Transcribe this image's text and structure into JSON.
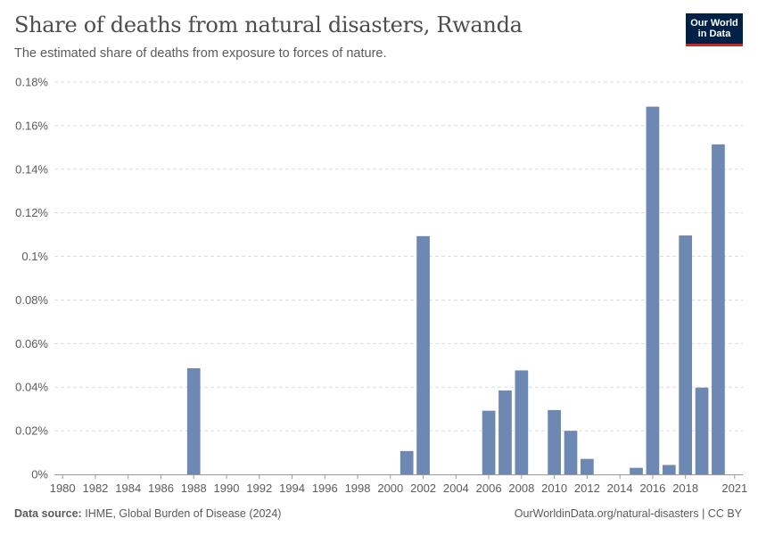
{
  "header": {
    "title": "Share of deaths from natural disasters, Rwanda",
    "subtitle": "The estimated share of deaths from exposure to forces of nature."
  },
  "logo": {
    "line1": "Our World",
    "line2": "in Data"
  },
  "footer": {
    "source_label": "Data source:",
    "source_text": "IHME, Global Burden of Disease (2024)",
    "right_text": "OurWorldinData.org/natural-disasters | CC BY"
  },
  "colors": {
    "bar": "#6d88b2",
    "grid": "#dddddd",
    "axis": "#999999",
    "text": "#5b5b5b"
  },
  "chart_data": {
    "type": "bar",
    "title": "Share of deaths from natural disasters, Rwanda",
    "xlabel": "",
    "ylabel": "",
    "x_range": [
      1980,
      2021
    ],
    "ylim": [
      0,
      0.18
    ],
    "y_ticks": [
      0,
      0.02,
      0.04,
      0.06,
      0.08,
      0.1,
      0.12,
      0.14,
      0.16,
      0.18
    ],
    "y_tick_labels": [
      "0%",
      "0.02%",
      "0.04%",
      "0.06%",
      "0.08%",
      "0.1%",
      "0.12%",
      "0.14%",
      "0.16%",
      "0.18%"
    ],
    "x_ticks": [
      1980,
      1982,
      1984,
      1986,
      1988,
      1990,
      1992,
      1994,
      1996,
      1998,
      2000,
      2002,
      2004,
      2006,
      2008,
      2010,
      2012,
      2014,
      2016,
      2018,
      2021
    ],
    "x_tick_labels": [
      "1980",
      "1982",
      "1984",
      "1986",
      "1988",
      "1990",
      "1992",
      "1994",
      "1996",
      "1998",
      "2000",
      "2002",
      "2004",
      "2006",
      "2008",
      "2010",
      "2012",
      "2014",
      "2016",
      "2018",
      "2021"
    ],
    "bars": [
      {
        "year": 1988,
        "value": 0.0487
      },
      {
        "year": 2001,
        "value": 0.0107
      },
      {
        "year": 2002,
        "value": 0.1093
      },
      {
        "year": 2006,
        "value": 0.0292
      },
      {
        "year": 2007,
        "value": 0.0385
      },
      {
        "year": 2008,
        "value": 0.0477
      },
      {
        "year": 2010,
        "value": 0.0295
      },
      {
        "year": 2011,
        "value": 0.02
      },
      {
        "year": 2012,
        "value": 0.0071
      },
      {
        "year": 2015,
        "value": 0.003
      },
      {
        "year": 2016,
        "value": 0.1687
      },
      {
        "year": 2017,
        "value": 0.0043
      },
      {
        "year": 2018,
        "value": 0.1096
      },
      {
        "year": 2019,
        "value": 0.0398
      },
      {
        "year": 2020,
        "value": 0.1514
      }
    ]
  }
}
